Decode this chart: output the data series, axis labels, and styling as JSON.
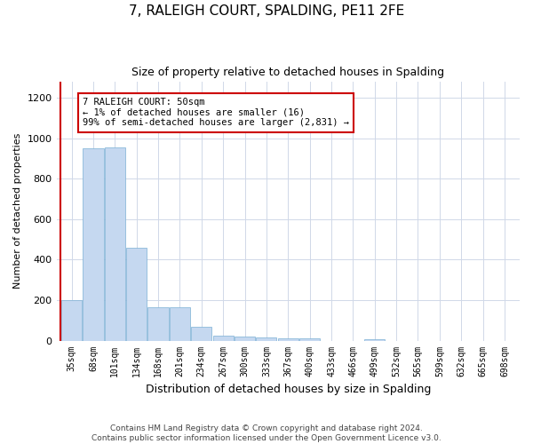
{
  "title": "7, RALEIGH COURT, SPALDING, PE11 2FE",
  "subtitle": "Size of property relative to detached houses in Spalding",
  "xlabel": "Distribution of detached houses by size in Spalding",
  "ylabel": "Number of detached properties",
  "categories": [
    "35sqm",
    "68sqm",
    "101sqm",
    "134sqm",
    "168sqm",
    "201sqm",
    "234sqm",
    "267sqm",
    "300sqm",
    "333sqm",
    "367sqm",
    "400sqm",
    "433sqm",
    "466sqm",
    "499sqm",
    "532sqm",
    "565sqm",
    "599sqm",
    "632sqm",
    "665sqm",
    "698sqm"
  ],
  "values": [
    200,
    950,
    955,
    460,
    165,
    165,
    70,
    25,
    22,
    15,
    10,
    12,
    0,
    0,
    8,
    0,
    0,
    0,
    0,
    0,
    0
  ],
  "bar_color": "#c5d8f0",
  "bar_edgecolor": "#7bafd4",
  "marker_color": "#cc0000",
  "annotation_text": "7 RALEIGH COURT: 50sqm\n← 1% of detached houses are smaller (16)\n99% of semi-detached houses are larger (2,831) →",
  "annotation_box_color": "#ffffff",
  "annotation_box_edgecolor": "#cc0000",
  "ylim": [
    0,
    1280
  ],
  "yticks": [
    0,
    200,
    400,
    600,
    800,
    1000,
    1200
  ],
  "footer_text": "Contains HM Land Registry data © Crown copyright and database right 2024.\nContains public sector information licensed under the Open Government Licence v3.0.",
  "background_color": "#ffffff",
  "grid_color": "#d0d8e8"
}
